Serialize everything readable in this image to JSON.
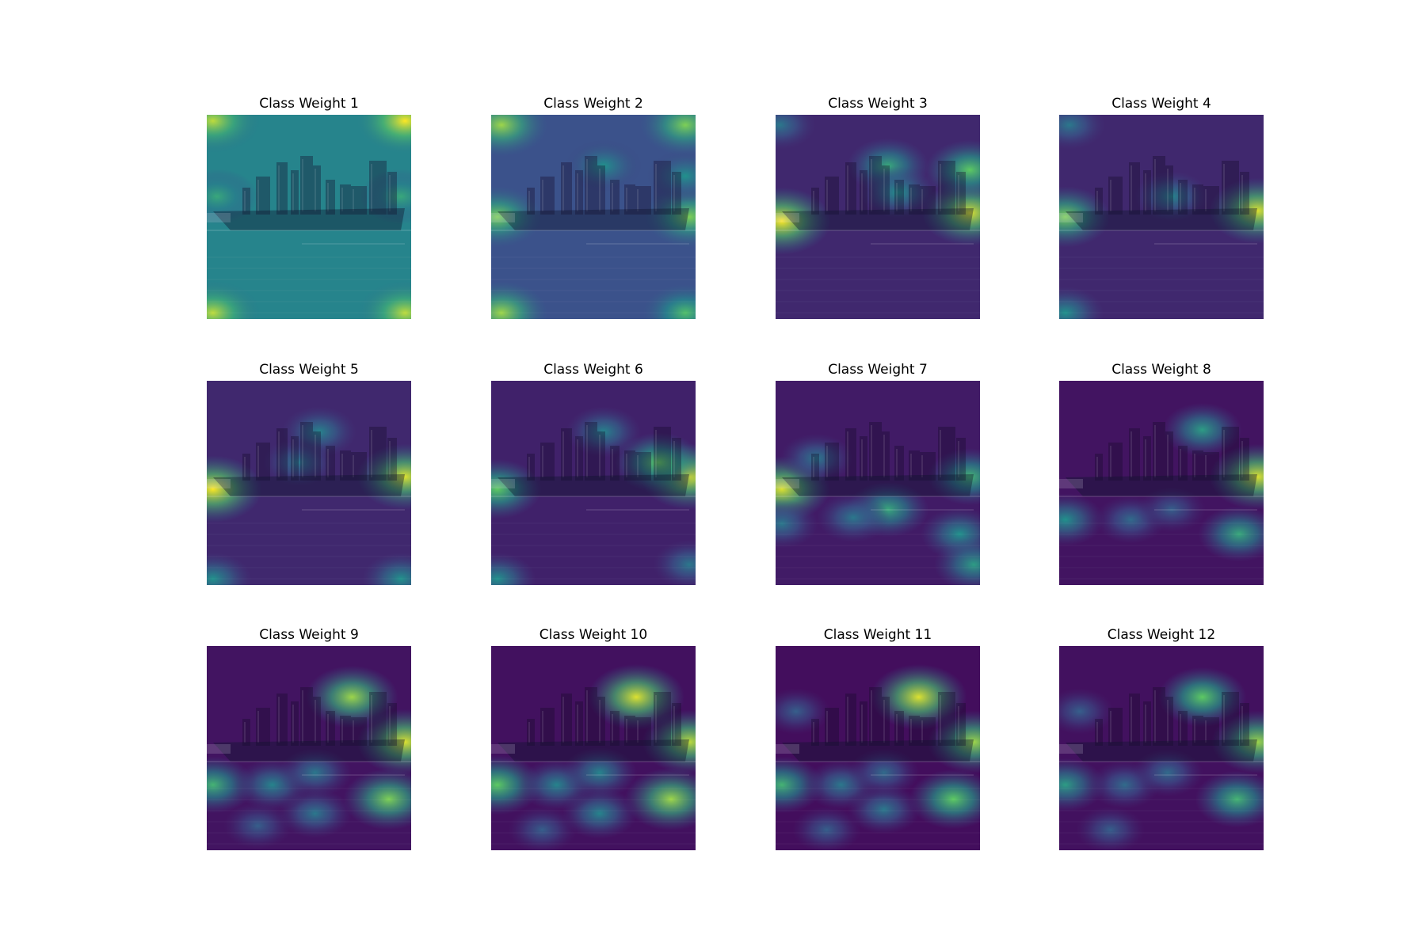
{
  "chart_data": {
    "type": "heatmap",
    "grid": {
      "rows": 3,
      "cols": 4
    },
    "colormap": "viridis",
    "panels": [
      {
        "title": "Class Weight 1",
        "base_intensity": 0.45,
        "hotspots": [
          [
            0.03,
            0.03,
            0.9
          ],
          [
            0.97,
            0.03,
            1.0
          ],
          [
            0.03,
            0.97,
            0.9
          ],
          [
            0.97,
            0.97,
            0.9
          ],
          [
            0.05,
            0.4,
            0.6
          ],
          [
            0.95,
            0.4,
            0.6
          ]
        ]
      },
      {
        "title": "Class Weight 2",
        "base_intensity": 0.25,
        "hotspots": [
          [
            0.05,
            0.05,
            0.85
          ],
          [
            0.95,
            0.05,
            0.8
          ],
          [
            0.03,
            0.5,
            0.8
          ],
          [
            0.97,
            0.5,
            0.8
          ],
          [
            0.05,
            0.97,
            0.85
          ],
          [
            0.95,
            0.97,
            0.7
          ],
          [
            0.55,
            0.25,
            0.5
          ],
          [
            0.95,
            0.3,
            0.5
          ]
        ]
      },
      {
        "title": "Class Weight 3",
        "base_intensity": 0.12,
        "hotspots": [
          [
            0.03,
            0.52,
            1.0
          ],
          [
            0.95,
            0.48,
            0.95
          ],
          [
            0.95,
            0.27,
            0.75
          ],
          [
            0.55,
            0.25,
            0.6
          ],
          [
            0.02,
            0.05,
            0.4
          ],
          [
            0.6,
            0.38,
            0.5
          ]
        ]
      },
      {
        "title": "Class Weight 4",
        "base_intensity": 0.12,
        "hotspots": [
          [
            0.97,
            0.47,
            0.95
          ],
          [
            0.03,
            0.5,
            0.8
          ],
          [
            0.05,
            0.05,
            0.4
          ],
          [
            0.55,
            0.4,
            0.45
          ],
          [
            0.03,
            0.97,
            0.5
          ]
        ]
      },
      {
        "title": "Class Weight 5",
        "base_intensity": 0.12,
        "hotspots": [
          [
            0.03,
            0.53,
            1.0
          ],
          [
            0.97,
            0.47,
            0.95
          ],
          [
            0.55,
            0.25,
            0.45
          ],
          [
            0.03,
            0.97,
            0.5
          ],
          [
            0.95,
            0.97,
            0.5
          ],
          [
            0.45,
            0.4,
            0.4
          ]
        ]
      },
      {
        "title": "Class Weight 6",
        "base_intensity": 0.1,
        "hotspots": [
          [
            0.97,
            0.47,
            0.95
          ],
          [
            0.82,
            0.4,
            0.75
          ],
          [
            0.03,
            0.53,
            0.75
          ],
          [
            0.55,
            0.25,
            0.45
          ],
          [
            0.03,
            0.97,
            0.5
          ],
          [
            0.97,
            0.9,
            0.4
          ]
        ]
      },
      {
        "title": "Class Weight 7",
        "base_intensity": 0.08,
        "hotspots": [
          [
            0.03,
            0.53,
            0.95
          ],
          [
            0.95,
            0.47,
            0.65
          ],
          [
            0.55,
            0.63,
            0.6
          ],
          [
            0.9,
            0.75,
            0.5
          ],
          [
            0.97,
            0.9,
            0.55
          ],
          [
            0.38,
            0.67,
            0.4
          ],
          [
            0.03,
            0.7,
            0.4
          ],
          [
            0.2,
            0.38,
            0.4
          ]
        ]
      },
      {
        "title": "Class Weight 8",
        "base_intensity": 0.06,
        "hotspots": [
          [
            0.97,
            0.47,
            0.95
          ],
          [
            0.88,
            0.75,
            0.6
          ],
          [
            0.7,
            0.24,
            0.55
          ],
          [
            0.03,
            0.68,
            0.5
          ],
          [
            0.35,
            0.68,
            0.35
          ],
          [
            0.55,
            0.63,
            0.3
          ]
        ]
      },
      {
        "title": "Class Weight 9",
        "base_intensity": 0.06,
        "hotspots": [
          [
            0.71,
            0.25,
            0.85
          ],
          [
            0.97,
            0.47,
            0.95
          ],
          [
            0.89,
            0.75,
            0.8
          ],
          [
            0.03,
            0.68,
            0.65
          ],
          [
            0.32,
            0.68,
            0.45
          ],
          [
            0.53,
            0.62,
            0.4
          ],
          [
            0.53,
            0.82,
            0.4
          ],
          [
            0.25,
            0.88,
            0.3
          ]
        ]
      },
      {
        "title": "Class Weight 10",
        "base_intensity": 0.05,
        "hotspots": [
          [
            0.71,
            0.25,
            0.95
          ],
          [
            0.97,
            0.47,
            0.9
          ],
          [
            0.88,
            0.75,
            0.85
          ],
          [
            0.03,
            0.68,
            0.75
          ],
          [
            0.32,
            0.68,
            0.45
          ],
          [
            0.53,
            0.62,
            0.45
          ],
          [
            0.53,
            0.82,
            0.45
          ],
          [
            0.25,
            0.9,
            0.3
          ]
        ]
      },
      {
        "title": "Class Weight 11",
        "base_intensity": 0.04,
        "hotspots": [
          [
            0.7,
            0.25,
            0.95
          ],
          [
            0.97,
            0.47,
            0.85
          ],
          [
            0.87,
            0.75,
            0.75
          ],
          [
            0.03,
            0.68,
            0.65
          ],
          [
            0.32,
            0.68,
            0.4
          ],
          [
            0.53,
            0.8,
            0.4
          ],
          [
            0.53,
            0.62,
            0.35
          ],
          [
            0.25,
            0.9,
            0.3
          ],
          [
            0.1,
            0.32,
            0.3
          ]
        ]
      },
      {
        "title": "Class Weight 12",
        "base_intensity": 0.05,
        "hotspots": [
          [
            0.7,
            0.25,
            0.75
          ],
          [
            0.97,
            0.47,
            0.85
          ],
          [
            0.87,
            0.75,
            0.65
          ],
          [
            0.03,
            0.68,
            0.55
          ],
          [
            0.32,
            0.68,
            0.35
          ],
          [
            0.53,
            0.62,
            0.35
          ],
          [
            0.25,
            0.9,
            0.3
          ],
          [
            0.1,
            0.32,
            0.3
          ]
        ]
      }
    ]
  }
}
